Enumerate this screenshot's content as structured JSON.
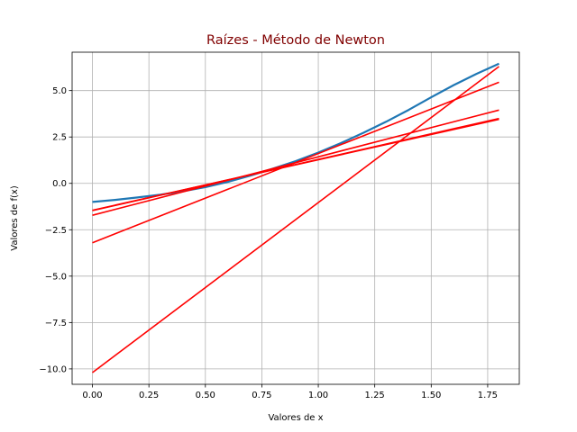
{
  "chart_data": {
    "type": "line",
    "title": "Raízes - Método de Newton",
    "xlabel": "Valores de x",
    "ylabel": "Valores de f(x)",
    "xlim": [
      -0.09,
      1.89
    ],
    "ylim": [
      -10.83,
      7.07
    ],
    "grid": true,
    "x_ticks": [
      0.0,
      0.25,
      0.5,
      0.75,
      1.0,
      1.25,
      1.5,
      1.75
    ],
    "x_tick_labels": [
      "0.00",
      "0.25",
      "0.50",
      "0.75",
      "1.00",
      "1.25",
      "1.50",
      "1.75"
    ],
    "y_ticks": [
      -10.0,
      -7.5,
      -5.0,
      -2.5,
      0.0,
      2.5,
      5.0
    ],
    "y_tick_labels": [
      "−10.0",
      "−7.5",
      "−5.0",
      "−2.5",
      "0.0",
      "2.5",
      "5.0"
    ],
    "colors": {
      "title": "#800000",
      "function": "#1f77b4",
      "tangent": "#ff0000",
      "grid": "#b0b0b0",
      "axes": "#000000"
    },
    "function_curve": {
      "x": [
        0,
        0.1,
        0.2,
        0.3,
        0.4,
        0.5,
        0.6,
        0.7,
        0.8,
        0.9,
        1.0,
        1.1,
        1.2,
        1.3,
        1.4,
        1.5,
        1.6,
        1.7,
        1.8
      ],
      "y": [
        -1.0,
        -0.89,
        -0.76,
        -0.61,
        -0.43,
        -0.2,
        0.08,
        0.42,
        0.8,
        1.2,
        1.66,
        2.17,
        2.73,
        3.32,
        3.96,
        4.64,
        5.3,
        5.9,
        6.45
      ]
    },
    "series": [
      {
        "x": [
          0,
          1.8
        ],
        "y": [
          -10.2,
          6.3
        ]
      },
      {
        "x": [
          0,
          1.8
        ],
        "y": [
          -3.2,
          5.45
        ]
      },
      {
        "x": [
          0,
          1.8
        ],
        "y": [
          -1.72,
          3.95
        ]
      },
      {
        "x": [
          0,
          1.8
        ],
        "y": [
          -1.47,
          3.5
        ]
      },
      {
        "x": [
          0,
          1.8
        ],
        "y": [
          -1.45,
          3.45
        ]
      }
    ]
  }
}
